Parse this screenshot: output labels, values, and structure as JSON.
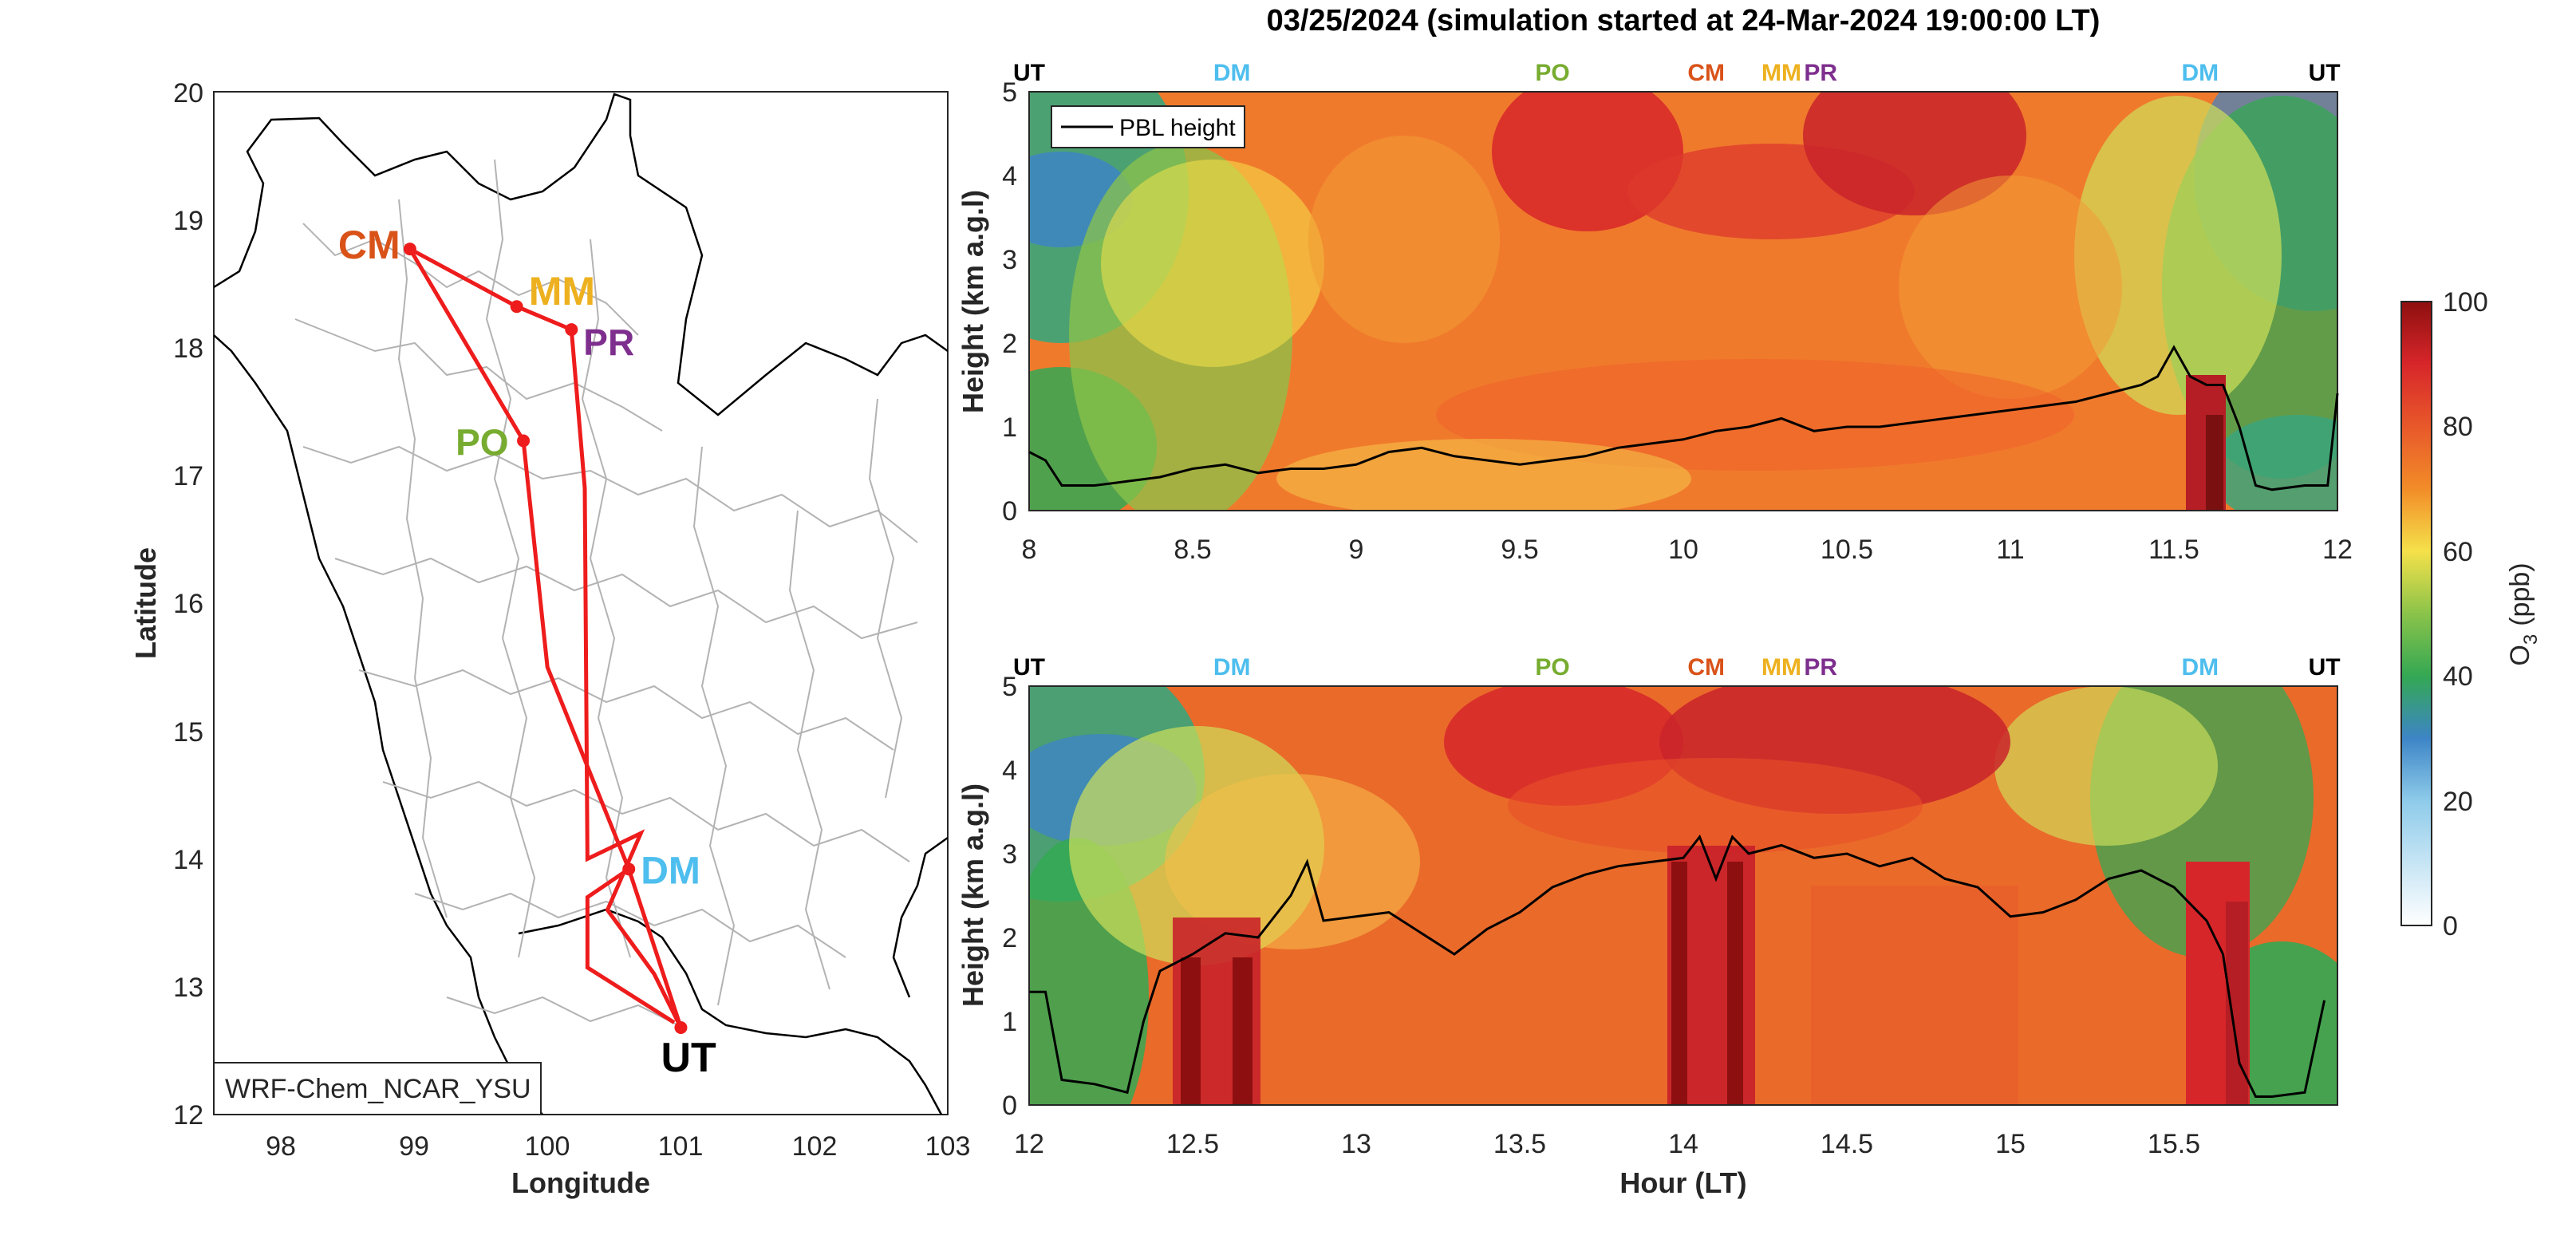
{
  "figure": {
    "title": "03/25/2024 (simulation started at 24-Mar-2024 19:00:00 LT)"
  },
  "colors": {
    "route": "#ee1c1c",
    "site_CM": "#d95319",
    "site_MM": "#edb120",
    "site_PR": "#7e2f8e",
    "site_PO": "#77ac30",
    "site_DM": "#4dbeee",
    "site_UT": "#000000",
    "pbl_line": "#000000"
  },
  "chart_data": [
    {
      "type": "scatter",
      "panel": "map",
      "xlabel": "Longitude",
      "ylabel": "Latitude",
      "xlim": [
        97.5,
        103
      ],
      "ylim": [
        12,
        20
      ],
      "xticks": [
        "98",
        "99",
        "100",
        "101",
        "102",
        "103"
      ],
      "yticks": [
        "12",
        "13",
        "14",
        "15",
        "16",
        "17",
        "18",
        "19",
        "20"
      ],
      "model_label": "WRF-Chem_NCAR_YSU",
      "sites": [
        {
          "name": "CM",
          "lon": 98.97,
          "lat": 18.77
        },
        {
          "name": "MM",
          "lon": 99.77,
          "lat": 18.32
        },
        {
          "name": "PR",
          "lon": 100.18,
          "lat": 18.14
        },
        {
          "name": "PO",
          "lon": 99.82,
          "lat": 17.27
        },
        {
          "name": "DM",
          "lon": 100.61,
          "lat": 13.92
        },
        {
          "name": "UT",
          "lon": 101.0,
          "lat": 12.68
        }
      ],
      "route": [
        {
          "lon": 101.0,
          "lat": 12.68
        },
        {
          "lon": 100.61,
          "lat": 13.92
        },
        {
          "lon": 100.0,
          "lat": 15.5
        },
        {
          "lon": 99.82,
          "lat": 17.27
        },
        {
          "lon": 98.97,
          "lat": 18.77
        },
        {
          "lon": 99.77,
          "lat": 18.32
        },
        {
          "lon": 100.18,
          "lat": 18.14
        },
        {
          "lon": 100.28,
          "lat": 16.9
        },
        {
          "lon": 100.3,
          "lat": 14.0
        },
        {
          "lon": 100.7,
          "lat": 14.2
        },
        {
          "lon": 100.45,
          "lat": 13.6
        },
        {
          "lon": 100.8,
          "lat": 13.1
        },
        {
          "lon": 101.0,
          "lat": 12.68
        }
      ],
      "route2": [
        {
          "lon": 100.61,
          "lat": 13.92
        },
        {
          "lon": 100.3,
          "lat": 13.7
        },
        {
          "lon": 100.3,
          "lat": 13.15
        },
        {
          "lon": 100.95,
          "lat": 12.72
        }
      ]
    },
    {
      "type": "heatmap",
      "panel": "top",
      "ylabel": "Height (km a.g.l)",
      "xlim": [
        8,
        12
      ],
      "ylim": [
        0,
        5
      ],
      "xticks": [
        "8",
        "8.5",
        "9",
        "9.5",
        "10",
        "10.5",
        "11",
        "11.5",
        "12"
      ],
      "yticks": [
        "0",
        "1",
        "2",
        "3",
        "4",
        "5"
      ],
      "legend": "PBL height",
      "top_labels": [
        {
          "text": "UT",
          "x": 8.0
        },
        {
          "text": "DM",
          "x": 8.62
        },
        {
          "text": "PO",
          "x": 9.6
        },
        {
          "text": "CM",
          "x": 10.07
        },
        {
          "text": "MM",
          "x": 10.3
        },
        {
          "text": "PR",
          "x": 10.42
        },
        {
          "text": "DM",
          "x": 11.58
        },
        {
          "text": "UT",
          "x": 11.96
        }
      ],
      "pbl_height": {
        "x": [
          8.0,
          8.05,
          8.1,
          8.2,
          8.3,
          8.4,
          8.5,
          8.6,
          8.7,
          8.8,
          8.9,
          9.0,
          9.1,
          9.2,
          9.3,
          9.4,
          9.5,
          9.6,
          9.7,
          9.8,
          9.9,
          10.0,
          10.1,
          10.2,
          10.3,
          10.4,
          10.5,
          10.6,
          10.7,
          10.8,
          10.9,
          11.0,
          11.1,
          11.2,
          11.3,
          11.4,
          11.45,
          11.5,
          11.55,
          11.6,
          11.65,
          11.7,
          11.75,
          11.8,
          11.9,
          11.97,
          12.0
        ],
        "y": [
          0.7,
          0.6,
          0.3,
          0.3,
          0.35,
          0.4,
          0.5,
          0.55,
          0.45,
          0.5,
          0.5,
          0.55,
          0.7,
          0.75,
          0.65,
          0.6,
          0.55,
          0.6,
          0.65,
          0.75,
          0.8,
          0.85,
          0.95,
          1.0,
          1.1,
          0.95,
          1.0,
          1.0,
          1.05,
          1.1,
          1.15,
          1.2,
          1.25,
          1.3,
          1.4,
          1.5,
          1.6,
          1.95,
          1.6,
          1.5,
          1.5,
          1.0,
          0.3,
          0.25,
          0.3,
          0.3,
          1.4
        ]
      }
    },
    {
      "type": "heatmap",
      "panel": "bottom",
      "xlabel": "Hour (LT)",
      "ylabel": "Height (km a.g.l)",
      "xlim": [
        12,
        16
      ],
      "ylim": [
        0,
        5
      ],
      "xticks": [
        "12",
        "12.5",
        "13",
        "13.5",
        "14",
        "14.5",
        "15",
        "15.5"
      ],
      "yticks": [
        "0",
        "1",
        "2",
        "3",
        "4",
        "5"
      ],
      "top_labels": [
        {
          "text": "UT",
          "x": 12.0
        },
        {
          "text": "DM",
          "x": 12.62
        },
        {
          "text": "PO",
          "x": 13.6
        },
        {
          "text": "CM",
          "x": 14.07
        },
        {
          "text": "MM",
          "x": 14.3
        },
        {
          "text": "PR",
          "x": 14.42
        },
        {
          "text": "DM",
          "x": 15.58
        },
        {
          "text": "UT",
          "x": 15.96
        }
      ],
      "pbl_height": {
        "x": [
          12.0,
          12.05,
          12.1,
          12.2,
          12.3,
          12.35,
          12.4,
          12.5,
          12.6,
          12.7,
          12.8,
          12.85,
          12.9,
          13.0,
          13.1,
          13.2,
          13.3,
          13.4,
          13.5,
          13.6,
          13.7,
          13.8,
          13.9,
          14.0,
          14.05,
          14.1,
          14.15,
          14.2,
          14.3,
          14.4,
          14.5,
          14.6,
          14.7,
          14.8,
          14.9,
          15.0,
          15.1,
          15.2,
          15.3,
          15.4,
          15.5,
          15.6,
          15.65,
          15.7,
          15.75,
          15.8,
          15.9,
          15.96
        ],
        "y": [
          1.35,
          1.35,
          0.3,
          0.25,
          0.15,
          1.0,
          1.6,
          1.8,
          2.05,
          2.0,
          2.5,
          2.9,
          2.2,
          2.25,
          2.3,
          2.05,
          1.8,
          2.1,
          2.3,
          2.6,
          2.75,
          2.85,
          2.9,
          2.95,
          3.2,
          2.7,
          3.2,
          3.0,
          3.1,
          2.95,
          3.0,
          2.85,
          2.95,
          2.7,
          2.6,
          2.25,
          2.3,
          2.45,
          2.7,
          2.8,
          2.6,
          2.2,
          1.8,
          0.5,
          0.1,
          0.1,
          0.15,
          1.25
        ]
      }
    }
  ],
  "colorbar": {
    "label": "O3 (ppb)",
    "label_main": "O",
    "label_sub": "3",
    "label_unit": "(ppb)",
    "ticks": [
      "0",
      "20",
      "40",
      "60",
      "80",
      "100"
    ],
    "range": [
      0,
      100
    ]
  }
}
